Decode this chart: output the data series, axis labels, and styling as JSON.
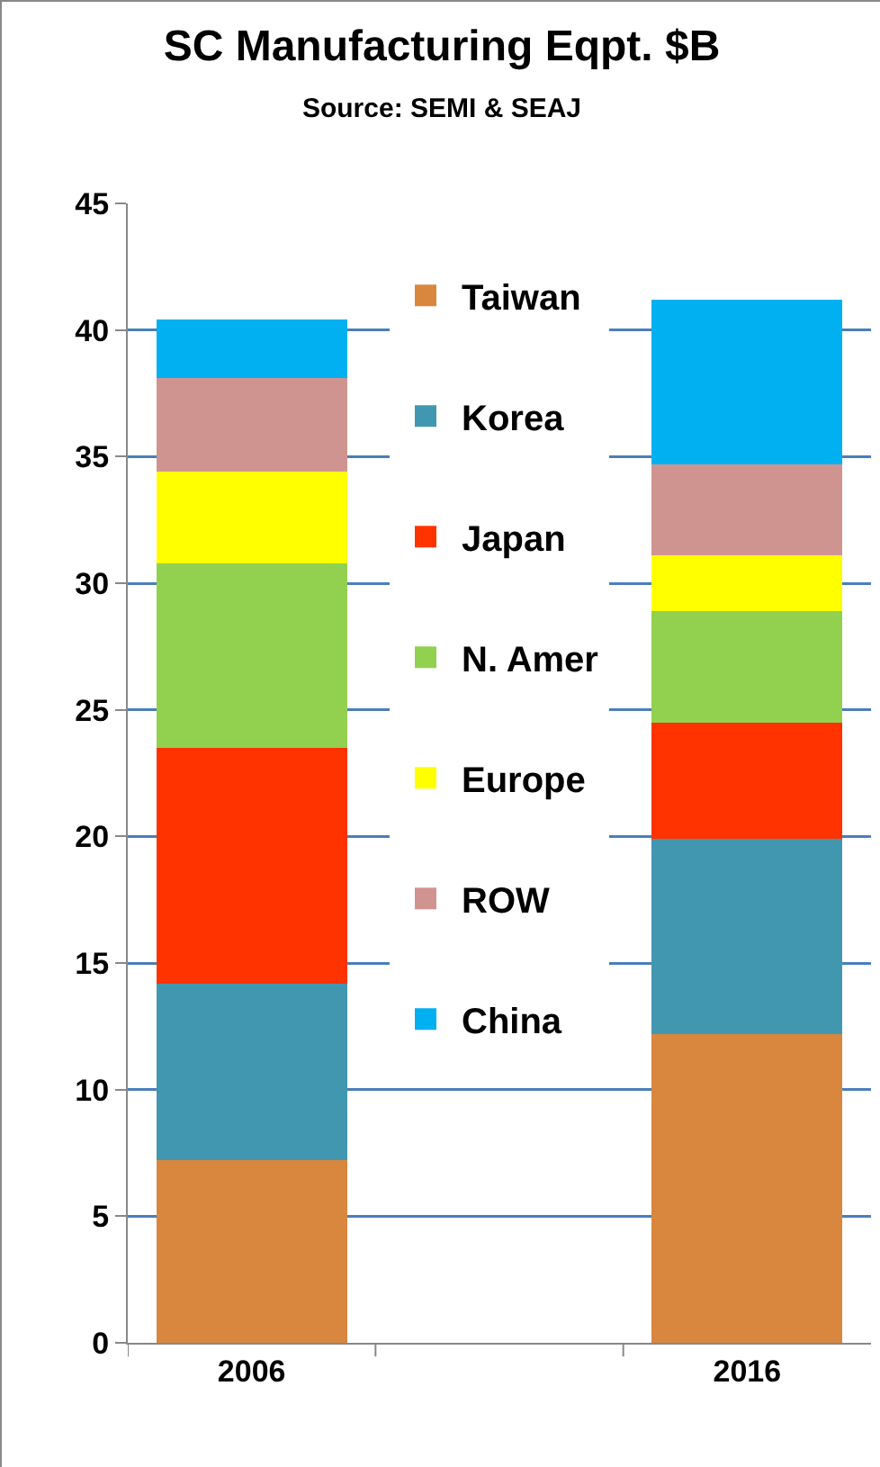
{
  "chart_data": {
    "type": "bar",
    "title": "SC Manufacturing Eqpt. $B",
    "subtitle": "Source: SEMI & SEAJ",
    "categories": [
      "2006",
      null,
      "2016"
    ],
    "stacked": true,
    "series": [
      {
        "name": "Taiwan",
        "color": "#d9873f",
        "values": [
          7.2,
          null,
          12.2
        ]
      },
      {
        "name": "Korea",
        "color": "#4297b0",
        "values": [
          7.0,
          null,
          7.7
        ]
      },
      {
        "name": "Japan",
        "color": "#ff3300",
        "values": [
          9.3,
          null,
          4.6
        ]
      },
      {
        "name": "N. Amer",
        "color": "#92d050",
        "values": [
          7.3,
          null,
          4.4
        ]
      },
      {
        "name": "Europe",
        "color": "#ffff00",
        "values": [
          3.6,
          null,
          2.2
        ]
      },
      {
        "name": "ROW",
        "color": "#d09490",
        "values": [
          3.7,
          null,
          3.6
        ]
      },
      {
        "name": "China",
        "color": "#00b0f0",
        "values": [
          2.3,
          null,
          6.5
        ]
      }
    ],
    "ylim": [
      0,
      45
    ],
    "yticks": [
      0,
      5,
      10,
      15,
      20,
      25,
      30,
      35,
      40,
      45
    ],
    "grid": "y",
    "legend": "top"
  }
}
